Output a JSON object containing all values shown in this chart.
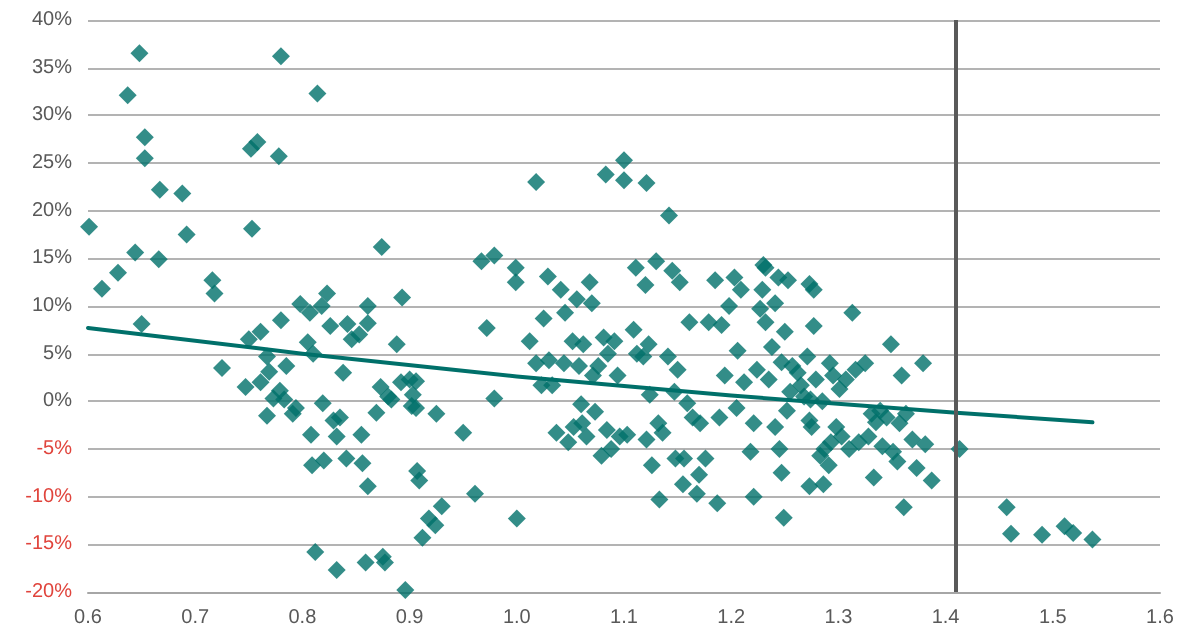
{
  "chart_data": {
    "type": "scatter",
    "marker": "diamond",
    "grid": "y",
    "xlim": [
      0.6,
      1.6
    ],
    "xticks": [
      {
        "value": 0.6,
        "label": "0.6"
      },
      {
        "value": 0.7,
        "label": "0.7"
      },
      {
        "value": 0.8,
        "label": "0.8"
      },
      {
        "value": 0.9,
        "label": "0.9"
      },
      {
        "value": 1.0,
        "label": "1.0"
      },
      {
        "value": 1.1,
        "label": "1.1"
      },
      {
        "value": 1.2,
        "label": "1.2"
      },
      {
        "value": 1.3,
        "label": "1.3"
      },
      {
        "value": 1.4,
        "label": "1.4"
      },
      {
        "value": 1.5,
        "label": "1.5"
      },
      {
        "value": 1.6,
        "label": "1.6"
      }
    ],
    "ylim": [
      -20,
      40
    ],
    "yticks": [
      {
        "value": -20,
        "label": "-20%"
      },
      {
        "value": -15,
        "label": "-15%"
      },
      {
        "value": -10,
        "label": "-10%"
      },
      {
        "value": -5,
        "label": "-5%"
      },
      {
        "value": 0,
        "label": "0%"
      },
      {
        "value": 5,
        "label": "5%"
      },
      {
        "value": 10,
        "label": "10%"
      },
      {
        "value": 15,
        "label": "15%"
      },
      {
        "value": 20,
        "label": "20%"
      },
      {
        "value": 25,
        "label": "25%"
      },
      {
        "value": 30,
        "label": "30%"
      },
      {
        "value": 35,
        "label": "35%"
      },
      {
        "value": 40,
        "label": "40%"
      }
    ],
    "ref_lines": [
      {
        "axis": "x",
        "value": 1.41,
        "color": "#595959"
      }
    ],
    "series": [
      {
        "color": "#00706a",
        "x": [
          0.601,
          0.613,
          0.628,
          0.637,
          0.644,
          0.648,
          0.65,
          0.653,
          0.653,
          0.667,
          0.666,
          0.688,
          0.692,
          0.716,
          0.718,
          0.725,
          0.747,
          0.75,
          0.752,
          0.758,
          0.753,
          0.761,
          0.761,
          0.767,
          0.769,
          0.767,
          0.773,
          0.778,
          0.78,
          0.78,
          0.779,
          0.785,
          0.783,
          0.791,
          0.794,
          0.798,
          0.805,
          0.807,
          0.81,
          0.808,
          0.809,
          0.814,
          0.812,
          0.818,
          0.819,
          0.82,
          0.823,
          0.826,
          0.829,
          0.832,
          0.832,
          0.835,
          0.838,
          0.841,
          0.842,
          0.846,
          0.853,
          0.855,
          0.856,
          0.859,
          0.861,
          0.861,
          0.861,
          0.869,
          0.873,
          0.874,
          0.875,
          0.877,
          0.88,
          0.883,
          0.888,
          0.893,
          0.892,
          0.896,
          0.902,
          0.906,
          0.9,
          0.903,
          0.906,
          0.907,
          0.909,
          0.912,
          0.918,
          0.924,
          0.93,
          0.925,
          0.95,
          0.961,
          0.967,
          0.972,
          0.979,
          0.979,
          0.999,
          0.999,
          1.0,
          1.012,
          1.018,
          1.018,
          1.023,
          1.025,
          1.029,
          1.03,
          1.033,
          1.037,
          1.041,
          1.045,
          1.044,
          1.048,
          1.052,
          1.053,
          1.056,
          1.058,
          1.06,
          1.061,
          1.062,
          1.065,
          1.068,
          1.07,
          1.071,
          1.073,
          1.076,
          1.079,
          1.081,
          1.083,
          1.084,
          1.085,
          1.088,
          1.091,
          1.094,
          1.096,
          1.1,
          1.1,
          1.103,
          1.109,
          1.111,
          1.112,
          1.118,
          1.12,
          1.121,
          1.121,
          1.123,
          1.124,
          1.126,
          1.13,
          1.132,
          1.133,
          1.136,
          1.141,
          1.142,
          1.145,
          1.147,
          1.148,
          1.15,
          1.152,
          1.155,
          1.156,
          1.159,
          1.161,
          1.164,
          1.168,
          1.17,
          1.171,
          1.176,
          1.179,
          1.185,
          1.187,
          1.189,
          1.191,
          1.194,
          1.198,
          1.203,
          1.205,
          1.206,
          1.209,
          1.212,
          1.218,
          1.221,
          1.221,
          1.224,
          1.227,
          1.23,
          1.229,
          1.232,
          1.232,
          1.235,
          1.238,
          1.241,
          1.241,
          1.244,
          1.245,
          1.247,
          1.247,
          1.249,
          1.25,
          1.252,
          1.253,
          1.255,
          1.257,
          1.262,
          1.265,
          1.268,
          1.271,
          1.273,
          1.273,
          1.274,
          1.275,
          1.273,
          1.277,
          1.277,
          1.279,
          1.283,
          1.285,
          1.286,
          1.287,
          1.291,
          1.292,
          1.293,
          1.295,
          1.298,
          1.301,
          1.303,
          1.307,
          1.31,
          1.313,
          1.316,
          1.319,
          1.325,
          1.328,
          1.331,
          1.333,
          1.335,
          1.339,
          1.341,
          1.345,
          1.349,
          1.351,
          1.355,
          1.357,
          1.359,
          1.361,
          1.363,
          1.369,
          1.373,
          1.379,
          1.381,
          1.387,
          1.413,
          1.457,
          1.461,
          1.49,
          1.511,
          1.519,
          1.537
        ],
        "values": [
          18.3,
          11.8,
          13.5,
          32.1,
          15.6,
          36.5,
          8.1,
          27.7,
          25.5,
          22.2,
          14.9,
          21.8,
          17.5,
          12.7,
          11.3,
          3.5,
          1.5,
          6.5,
          26.5,
          27.2,
          18.1,
          7.3,
          2.0,
          4.7,
          3.1,
          -1.5,
          0.3,
          25.7,
          36.2,
          8.5,
          1.1,
          3.7,
          0.2,
          -1.3,
          -0.7,
          10.2,
          6.2,
          9.3,
          5.0,
          -3.5,
          -6.7,
          32.3,
          -15.8,
          10.0,
          -0.2,
          -6.2,
          11.3,
          7.9,
          -2.0,
          -3.7,
          -17.7,
          -1.7,
          3.0,
          -6.0,
          8.1,
          6.5,
          7.0,
          -3.5,
          -6.5,
          -16.9,
          10.0,
          8.2,
          -8.9,
          -1.2,
          1.5,
          16.2,
          -16.3,
          -16.9,
          0.5,
          0.2,
          6.0,
          10.9,
          2.0,
          -19.8,
          -0.5,
          2.1,
          2.3,
          0.7,
          -0.7,
          -7.3,
          -8.3,
          -14.3,
          -12.3,
          -13.0,
          -11.0,
          -1.3,
          -3.3,
          -9.7,
          14.7,
          7.7,
          15.3,
          0.3,
          14.0,
          12.5,
          -12.3,
          6.3,
          23.0,
          4.0,
          1.7,
          8.7,
          13.1,
          4.3,
          1.7,
          -3.3,
          11.7,
          9.3,
          4.0,
          -4.3,
          6.3,
          -2.7,
          10.7,
          3.7,
          -0.3,
          -2.3,
          6.0,
          -3.7,
          12.5,
          10.3,
          2.7,
          -1.1,
          3.7,
          -5.7,
          6.7,
          23.8,
          -3.0,
          5.0,
          -5.0,
          6.3,
          2.7,
          -3.7,
          25.3,
          23.2,
          -3.5,
          7.5,
          14.0,
          5.0,
          4.7,
          12.2,
          22.9,
          -4.0,
          6.0,
          0.7,
          -6.7,
          14.7,
          -2.3,
          -10.3,
          -3.3,
          4.7,
          19.5,
          13.7,
          1.0,
          -6.0,
          3.3,
          12.5,
          -8.7,
          -6.0,
          -0.2,
          8.3,
          -1.7,
          -9.7,
          -7.7,
          -2.3,
          -6.0,
          8.3,
          12.7,
          -10.7,
          -1.7,
          8.0,
          2.7,
          10.0,
          13.0,
          -0.7,
          5.3,
          11.7,
          2.0,
          -5.3,
          -10.0,
          -2.3,
          3.3,
          9.7,
          14.3,
          11.7,
          14.0,
          8.3,
          2.3,
          5.7,
          10.3,
          -2.7,
          13.0,
          -5.0,
          -7.5,
          4.1,
          -12.2,
          7.3,
          -1.0,
          12.7,
          1.0,
          3.7,
          3.0,
          1.7,
          0.5,
          4.7,
          -2.0,
          12.3,
          0.2,
          -2.7,
          -8.9,
          11.7,
          7.9,
          2.3,
          -5.7,
          0.0,
          -8.7,
          -5.0,
          -6.7,
          4.0,
          -4.3,
          2.7,
          -2.7,
          1.3,
          -3.7,
          2.3,
          -5.0,
          9.3,
          3.3,
          -4.3,
          4.0,
          -3.7,
          -1.3,
          -8.0,
          -2.2,
          -1.0,
          -4.7,
          -1.7,
          6.0,
          -5.3,
          -6.3,
          -2.3,
          2.7,
          -11.1,
          -1.3,
          -4.0,
          -7.0,
          4.0,
          -4.5,
          -8.3,
          -5.0,
          -11.1,
          -13.9,
          -14.0,
          -13.1,
          -13.8,
          -14.5
        ]
      },
      {
        "type": "line",
        "color": "#00706a",
        "marker": "none",
        "x": [
          0.6,
          0.8,
          1.0,
          1.2,
          1.41,
          1.537
        ],
        "values": [
          7.7,
          5.0,
          2.6,
          0.6,
          -1.2,
          -2.2
        ]
      }
    ]
  }
}
